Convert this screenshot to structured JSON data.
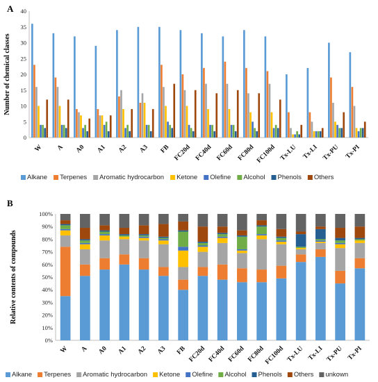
{
  "chart_data": [
    {
      "type": "bar",
      "panel": "A",
      "ylabel": "Number of chemical classes",
      "xlabel": "",
      "ylim": [
        0,
        40
      ],
      "yticks": [
        0,
        5,
        10,
        15,
        20,
        25,
        30,
        35,
        40
      ],
      "grid": false,
      "legend_position": "bottom",
      "categories": [
        "W",
        "A",
        "A0",
        "A1",
        "A2",
        "A3",
        "FB",
        "FC20d",
        "FC40d",
        "FC60d",
        "FC80d",
        "FC100d",
        "Tx-LU",
        "Tx-LI",
        "Tx-PU",
        "Tx-PI"
      ],
      "series": [
        {
          "name": "Alkane",
          "color": "#5b9bd5",
          "values": [
            36,
            33,
            32,
            29,
            34,
            35,
            35,
            34,
            33,
            32,
            34,
            32,
            20,
            22,
            30,
            27
          ]
        },
        {
          "name": "Terpenes",
          "color": "#ed7d31",
          "values": [
            23,
            19,
            9,
            9,
            13,
            11,
            23,
            20,
            22,
            24,
            22,
            21,
            8,
            8,
            19,
            16
          ]
        },
        {
          "name": "Aromatic hydrocarbon",
          "color": "#a5a5a5",
          "values": [
            16,
            16,
            8,
            7,
            15,
            14,
            16,
            15,
            17,
            17,
            14,
            17,
            3,
            5,
            11,
            10
          ]
        },
        {
          "name": "Ketone",
          "color": "#ffc000",
          "values": [
            10,
            10,
            7,
            7,
            9,
            11,
            10,
            10,
            9,
            9,
            8,
            8,
            1,
            2,
            5,
            3
          ]
        },
        {
          "name": "Olefine",
          "color": "#4472c4",
          "values": [
            4,
            4,
            3,
            4,
            3,
            4,
            5,
            4,
            4,
            4,
            5,
            3,
            1,
            2,
            4,
            2
          ]
        },
        {
          "name": "Alcohol",
          "color": "#70ad47",
          "values": [
            4,
            4,
            4,
            5,
            4,
            4,
            4,
            3,
            4,
            4,
            3,
            4,
            2,
            2,
            3,
            3
          ]
        },
        {
          "name": "Phenols",
          "color": "#255e91",
          "values": [
            3,
            3,
            2,
            2,
            2,
            2,
            3,
            2,
            2,
            2,
            2,
            3,
            1,
            2,
            3,
            3
          ]
        },
        {
          "name": "Others",
          "color": "#9e480e",
          "values": [
            12,
            12,
            6,
            7,
            9,
            9,
            17,
            15,
            14,
            15,
            14,
            12,
            4,
            3,
            8,
            5
          ]
        }
      ]
    },
    {
      "type": "bar",
      "stacked": true,
      "panel": "B",
      "ylabel": "Relative contents of compounds",
      "xlabel": "",
      "ylim": [
        0,
        100
      ],
      "yticks": [
        "0%",
        "10%",
        "20%",
        "30%",
        "40%",
        "50%",
        "60%",
        "70%",
        "80%",
        "90%",
        "100%"
      ],
      "grid": false,
      "legend_position": "bottom",
      "categories": [
        "W",
        "A",
        "A0",
        "A1",
        "A2",
        "A3",
        "FB",
        "FC20d",
        "FC40d",
        "FC60d",
        "FC80d",
        "FC100d",
        "Tx-LU",
        "Tx-LI",
        "Tx-PU",
        "Tx-PI"
      ],
      "series": [
        {
          "name": "Alkane",
          "color": "#5b9bd5",
          "values": [
            35,
            51,
            56,
            60,
            56,
            51,
            40,
            51,
            48,
            46,
            46,
            49,
            62,
            66,
            45,
            57
          ]
        },
        {
          "name": "Terpenes",
          "color": "#ed7d31",
          "values": [
            39,
            9,
            9,
            8,
            9,
            7,
            8,
            7,
            12,
            11,
            10,
            10,
            6,
            6,
            10,
            8
          ]
        },
        {
          "name": "Aromatic hydrocarbon",
          "color": "#a5a5a5",
          "values": [
            9,
            12,
            14,
            12,
            14,
            18,
            10,
            12,
            17,
            12,
            24,
            17,
            4,
            5,
            18,
            12
          ]
        },
        {
          "name": "Ketone",
          "color": "#ffc000",
          "values": [
            4,
            4,
            4,
            2,
            2,
            3,
            13,
            4,
            4,
            2,
            3,
            2,
            1,
            1,
            3,
            2
          ]
        },
        {
          "name": "Olefine",
          "color": "#4472c4",
          "values": [
            1,
            1,
            1,
            0,
            1,
            1,
            3,
            1,
            1,
            1,
            1,
            1,
            0,
            1,
            1,
            0
          ]
        },
        {
          "name": "Alcohol",
          "color": "#70ad47",
          "values": [
            3,
            2,
            2,
            1,
            1,
            1,
            12,
            2,
            2,
            10,
            6,
            2,
            1,
            1,
            2,
            1
          ]
        },
        {
          "name": "Phenols",
          "color": "#255e91",
          "values": [
            1,
            1,
            1,
            1,
            1,
            1,
            1,
            1,
            1,
            1,
            1,
            1,
            10,
            8,
            2,
            1
          ]
        },
        {
          "name": "Others",
          "color": "#9e480e",
          "values": [
            3,
            9,
            4,
            5,
            7,
            10,
            7,
            12,
            5,
            4,
            4,
            6,
            2,
            2,
            8,
            9
          ]
        },
        {
          "name": "unkown",
          "color": "#636363",
          "values": [
            5,
            11,
            9,
            11,
            9,
            8,
            6,
            10,
            10,
            13,
            5,
            12,
            14,
            10,
            11,
            10
          ]
        }
      ]
    }
  ]
}
